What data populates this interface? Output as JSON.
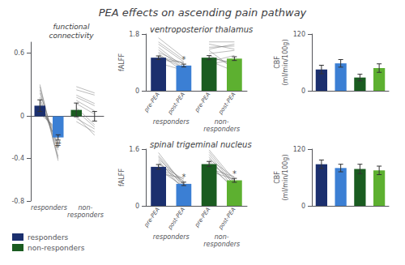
{
  "title": "PEA effects on ascending pain pathway",
  "chart_data": [
    {
      "type": "bar",
      "title": "functional\nconnectivity",
      "categories": [
        null,
        null,
        null,
        null
      ],
      "group_labels": [
        "responders",
        "non-\nresponders"
      ],
      "ylim": [
        -0.8,
        0.7
      ],
      "yticks": [
        -0.8,
        -0.4,
        0,
        0.6
      ],
      "legend": "lower left",
      "series": [
        {
          "name": "responders",
          "colors": [
            "#1b2f6e",
            "#3b7fd4",
            null,
            null
          ],
          "values": [
            0.1,
            -0.2,
            null,
            null
          ],
          "errors": [
            0.055,
            0.025,
            null,
            null
          ],
          "lines": [
            [
              0.22,
              -0.3
            ],
            [
              0.15,
              -0.28
            ],
            [
              0.08,
              -0.18
            ],
            [
              0.28,
              -0.38
            ],
            [
              0.05,
              -0.15
            ],
            [
              0.18,
              -0.32
            ],
            [
              0.1,
              -0.25
            ],
            [
              0.25,
              -0.4
            ],
            [
              0.02,
              -0.12
            ],
            [
              0.3,
              -0.42
            ],
            [
              0.12,
              -0.22
            ]
          ]
        },
        {
          "name": "non-responders",
          "colors": [
            null,
            null,
            "#1a5c20",
            "#5db030"
          ],
          "values": [
            null,
            null,
            0.06,
            0.0
          ],
          "errors": [
            null,
            null,
            0.065,
            0.045
          ],
          "lines": [
            [
              0.2,
              0.12
            ],
            [
              0.05,
              -0.1
            ],
            [
              0.15,
              0.05
            ],
            [
              -0.05,
              -0.15
            ],
            [
              0.25,
              0.2
            ],
            [
              0.08,
              -0.08
            ],
            [
              0.18,
              0.1
            ],
            [
              0.0,
              -0.18
            ],
            [
              0.28,
              0.22
            ],
            [
              -0.02,
              -0.12
            ],
            [
              0.12,
              0.02
            ]
          ]
        }
      ],
      "annotations": [
        {
          "text": "#",
          "index": 1
        }
      ]
    },
    {
      "type": "bar",
      "title": "ventroposterior thalamus",
      "ylabel": "fALFF",
      "categories": [
        "pre-PEA",
        "post-PEA",
        "pre-PEA",
        "post-PEA"
      ],
      "group_labels": [
        "responders",
        "non-\nresponders"
      ],
      "ylim": [
        0,
        1.8
      ],
      "yticks": [
        0,
        1.8
      ],
      "series": [
        {
          "colors": [
            "#1b2f6e",
            "#3b7fd4",
            null,
            null
          ],
          "values": [
            1.05,
            0.8,
            null,
            null
          ],
          "errors": [
            0.055,
            0.045,
            null,
            null
          ],
          "lines": [
            [
              1.68,
              1.05
            ],
            [
              1.3,
              0.7
            ],
            [
              1.08,
              0.88
            ],
            [
              1.18,
              0.6
            ],
            [
              0.98,
              0.9
            ],
            [
              1.38,
              0.75
            ],
            [
              0.88,
              0.65
            ],
            [
              1.22,
              0.85
            ],
            [
              1.12,
              0.72
            ],
            [
              1.48,
              0.92
            ],
            [
              1.55,
              0.98
            ]
          ]
        },
        {
          "colors": [
            null,
            null,
            "#1a5c20",
            "#5db030"
          ],
          "values": [
            null,
            null,
            1.05,
            1.02
          ],
          "errors": [
            null,
            null,
            0.065,
            0.06
          ],
          "lines": [
            [
              1.32,
              1.48
            ],
            [
              1.12,
              0.78
            ],
            [
              0.92,
              1.12
            ],
            [
              1.28,
              0.68
            ],
            [
              1.48,
              1.32
            ],
            [
              0.85,
              0.98
            ],
            [
              1.18,
              1.28
            ],
            [
              0.95,
              0.62
            ],
            [
              1.38,
              1.42
            ],
            [
              1.05,
              0.88
            ],
            [
              1.55,
              1.55
            ]
          ]
        }
      ],
      "annotations": [
        {
          "text": "*",
          "index": 1
        }
      ]
    },
    {
      "type": "bar",
      "ylabel": "CBF\n(ml/min/100g)",
      "categories": [
        null,
        null,
        null,
        null
      ],
      "ylim": [
        0,
        120
      ],
      "yticks": [
        0,
        120
      ],
      "series": [
        {
          "colors": [
            "#1b2f6e",
            "#3b7fd4",
            null,
            null
          ],
          "values": [
            45,
            58,
            null,
            null
          ],
          "errors": [
            9,
            8,
            null,
            null
          ]
        },
        {
          "colors": [
            null,
            null,
            "#1a5c20",
            "#5db030"
          ],
          "values": [
            null,
            null,
            28,
            48
          ],
          "errors": [
            null,
            null,
            7,
            9
          ]
        }
      ]
    },
    {
      "type": "bar",
      "title": "spinal trigeminal nucleus",
      "ylabel": "fALFF",
      "categories": [
        "pre-PEA",
        "post-PEA",
        "pre-PEA",
        "post-PEA"
      ],
      "group_labels": [
        "responders",
        "non-\nresponders"
      ],
      "ylim": [
        0,
        1.6
      ],
      "yticks": [
        0,
        1.6
      ],
      "series": [
        {
          "colors": [
            "#1b2f6e",
            "#3b7fd4",
            null,
            null
          ],
          "values": [
            1.1,
            0.62,
            null,
            null
          ],
          "errors": [
            0.065,
            0.048,
            null,
            null
          ],
          "lines": [
            [
              1.38,
              0.52
            ],
            [
              1.22,
              0.6
            ],
            [
              1.08,
              0.7
            ],
            [
              1.28,
              0.45
            ],
            [
              0.92,
              0.78
            ],
            [
              1.42,
              0.62
            ],
            [
              1.02,
              0.55
            ],
            [
              1.32,
              0.68
            ],
            [
              1.12,
              0.5
            ],
            [
              1.18,
              0.75
            ],
            [
              1.5,
              0.58
            ]
          ]
        },
        {
          "colors": [
            null,
            null,
            "#1a5c20",
            "#5db030"
          ],
          "values": [
            null,
            null,
            1.18,
            0.72
          ],
          "errors": [
            null,
            null,
            0.072,
            0.055
          ],
          "lines": [
            [
              1.45,
              0.58
            ],
            [
              1.22,
              0.7
            ],
            [
              1.05,
              0.82
            ],
            [
              1.38,
              0.48
            ],
            [
              0.98,
              0.75
            ],
            [
              1.52,
              0.65
            ],
            [
              1.12,
              0.52
            ],
            [
              1.32,
              0.8
            ],
            [
              1.2,
              0.45
            ],
            [
              1.28,
              0.62
            ],
            [
              1.58,
              0.72
            ]
          ]
        }
      ],
      "annotations": [
        {
          "text": "*",
          "index": 1
        },
        {
          "text": "*",
          "index": 3
        }
      ]
    },
    {
      "type": "bar",
      "ylabel": "CBF\n(ml/min/100g)",
      "categories": [
        null,
        null,
        null,
        null
      ],
      "ylim": [
        0,
        120
      ],
      "yticks": [
        0,
        120
      ],
      "series": [
        {
          "colors": [
            "#1b2f6e",
            "#3b7fd4",
            null,
            null
          ],
          "values": [
            88,
            80,
            null,
            null
          ],
          "errors": [
            9,
            8,
            null,
            null
          ]
        },
        {
          "colors": [
            null,
            null,
            "#1a5c20",
            "#5db030"
          ],
          "values": [
            null,
            null,
            78,
            75
          ],
          "errors": [
            null,
            null,
            10,
            9
          ]
        }
      ]
    }
  ]
}
